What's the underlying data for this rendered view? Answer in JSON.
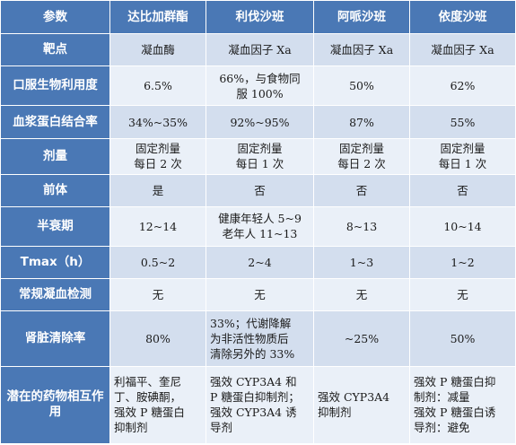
{
  "header": [
    "参数",
    "达比加群酯",
    "利伐沙班",
    "阿哌沙班",
    "依度沙班"
  ],
  "rows": [
    {
      "param": "靶点",
      "cells": [
        [
          "凝血酶"
        ],
        [
          "凝血因子 Xa"
        ],
        [
          "凝血因子 Xa"
        ],
        [
          "凝血因子 Xa"
        ]
      ]
    },
    {
      "param": "口服生物利用度",
      "cells": [
        [
          "6.5%"
        ],
        [
          "66%，与食物同",
          "服 100%"
        ],
        [
          "50%"
        ],
        [
          "62%"
        ]
      ]
    },
    {
      "param": "血浆蛋白结合率",
      "cells": [
        [
          "34%~35%"
        ],
        [
          "92%~95%"
        ],
        [
          "87%"
        ],
        [
          "55%"
        ]
      ]
    },
    {
      "param": "剂量",
      "cells": [
        [
          "固定剂量",
          "每日 2 次"
        ],
        [
          "固定剂量",
          "每日 1 次"
        ],
        [
          "固定剂量",
          "每日 2 次"
        ],
        [
          "固定剂量",
          "每日 1 次"
        ]
      ]
    },
    {
      "param": "前体",
      "cells": [
        [
          "是"
        ],
        [
          "否"
        ],
        [
          "否"
        ],
        [
          "否"
        ]
      ]
    },
    {
      "param": "半衰期",
      "cells": [
        [
          "12~14"
        ],
        [
          "健康年轻人 5~9",
          "老年人 11~13"
        ],
        [
          "8~13"
        ],
        [
          "10~14"
        ]
      ]
    },
    {
      "param": "Tmax（h）",
      "cells": [
        [
          "0.5~2"
        ],
        [
          "2~4"
        ],
        [
          "1~3"
        ],
        [
          "1~2"
        ]
      ]
    },
    {
      "param": "常规凝血检测",
      "cells": [
        [
          "无"
        ],
        [
          "无"
        ],
        [
          "无"
        ],
        [
          "无"
        ]
      ]
    },
    {
      "param": "肾脏清除率",
      "cells": [
        [
          "80%"
        ],
        [
          "33%；代谢降解",
          "为非活性物质后",
          "清除另外的 33%"
        ],
        [
          "~25%"
        ],
        [
          "50%"
        ]
      ]
    },
    {
      "param": "潜在的药物相互作用",
      "cells": [
        [
          "利福平、奎尼",
          "丁、胺碘酮，",
          "强效 P 糖蛋白",
          "抑制剂"
        ],
        [
          "强效 CYP3A4 和",
          "P 糖蛋白抑制剂；",
          "强效 CYP3A4 诱",
          "导剂"
        ],
        [
          "强效 CYP3A4",
          "抑制剂"
        ],
        [
          "强效 P 糖蛋白抑",
          "制剂：减量",
          "强效 P 糖蛋白诱",
          "导剂：避免"
        ]
      ]
    }
  ]
}
